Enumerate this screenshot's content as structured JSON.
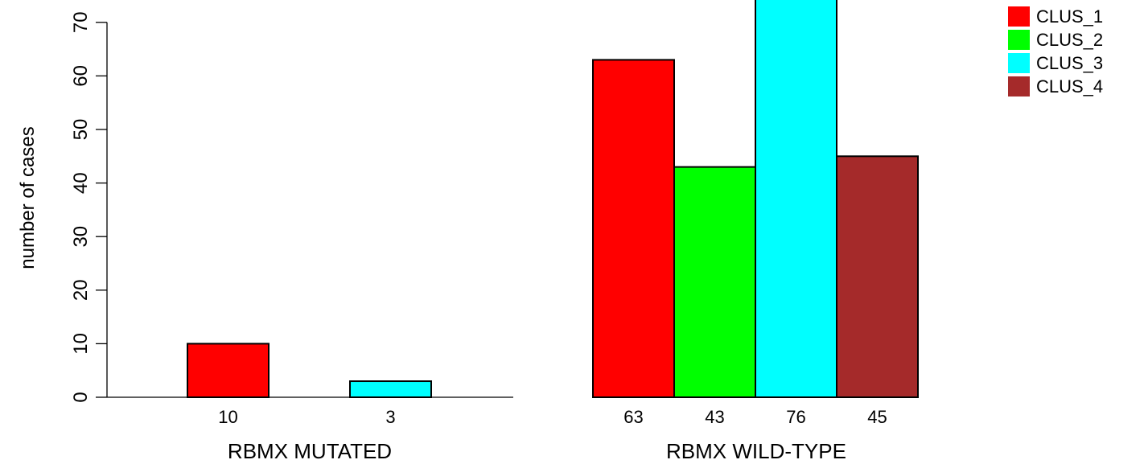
{
  "chart_data": {
    "type": "bar",
    "ylabel": "number of cases",
    "ylim": [
      0,
      70
    ],
    "yticks": [
      0,
      10,
      20,
      30,
      40,
      50,
      60,
      70
    ],
    "groups": [
      {
        "label": "RBMX MUTATED",
        "values": [
          10,
          0,
          3,
          0
        ],
        "value_labels": [
          "10",
          "",
          "3",
          ""
        ]
      },
      {
        "label": "RBMX WILD-TYPE",
        "values": [
          63,
          43,
          76,
          45
        ],
        "value_labels": [
          "63",
          "43",
          "76",
          "45"
        ]
      }
    ],
    "series": [
      {
        "name": "CLUS_1",
        "color": "#ff0000"
      },
      {
        "name": "CLUS_2",
        "color": "#00ff00"
      },
      {
        "name": "CLUS_3",
        "color": "#00ffff"
      },
      {
        "name": "CLUS_4",
        "color": "#a52a2a"
      }
    ],
    "legend_position": "top-right"
  }
}
